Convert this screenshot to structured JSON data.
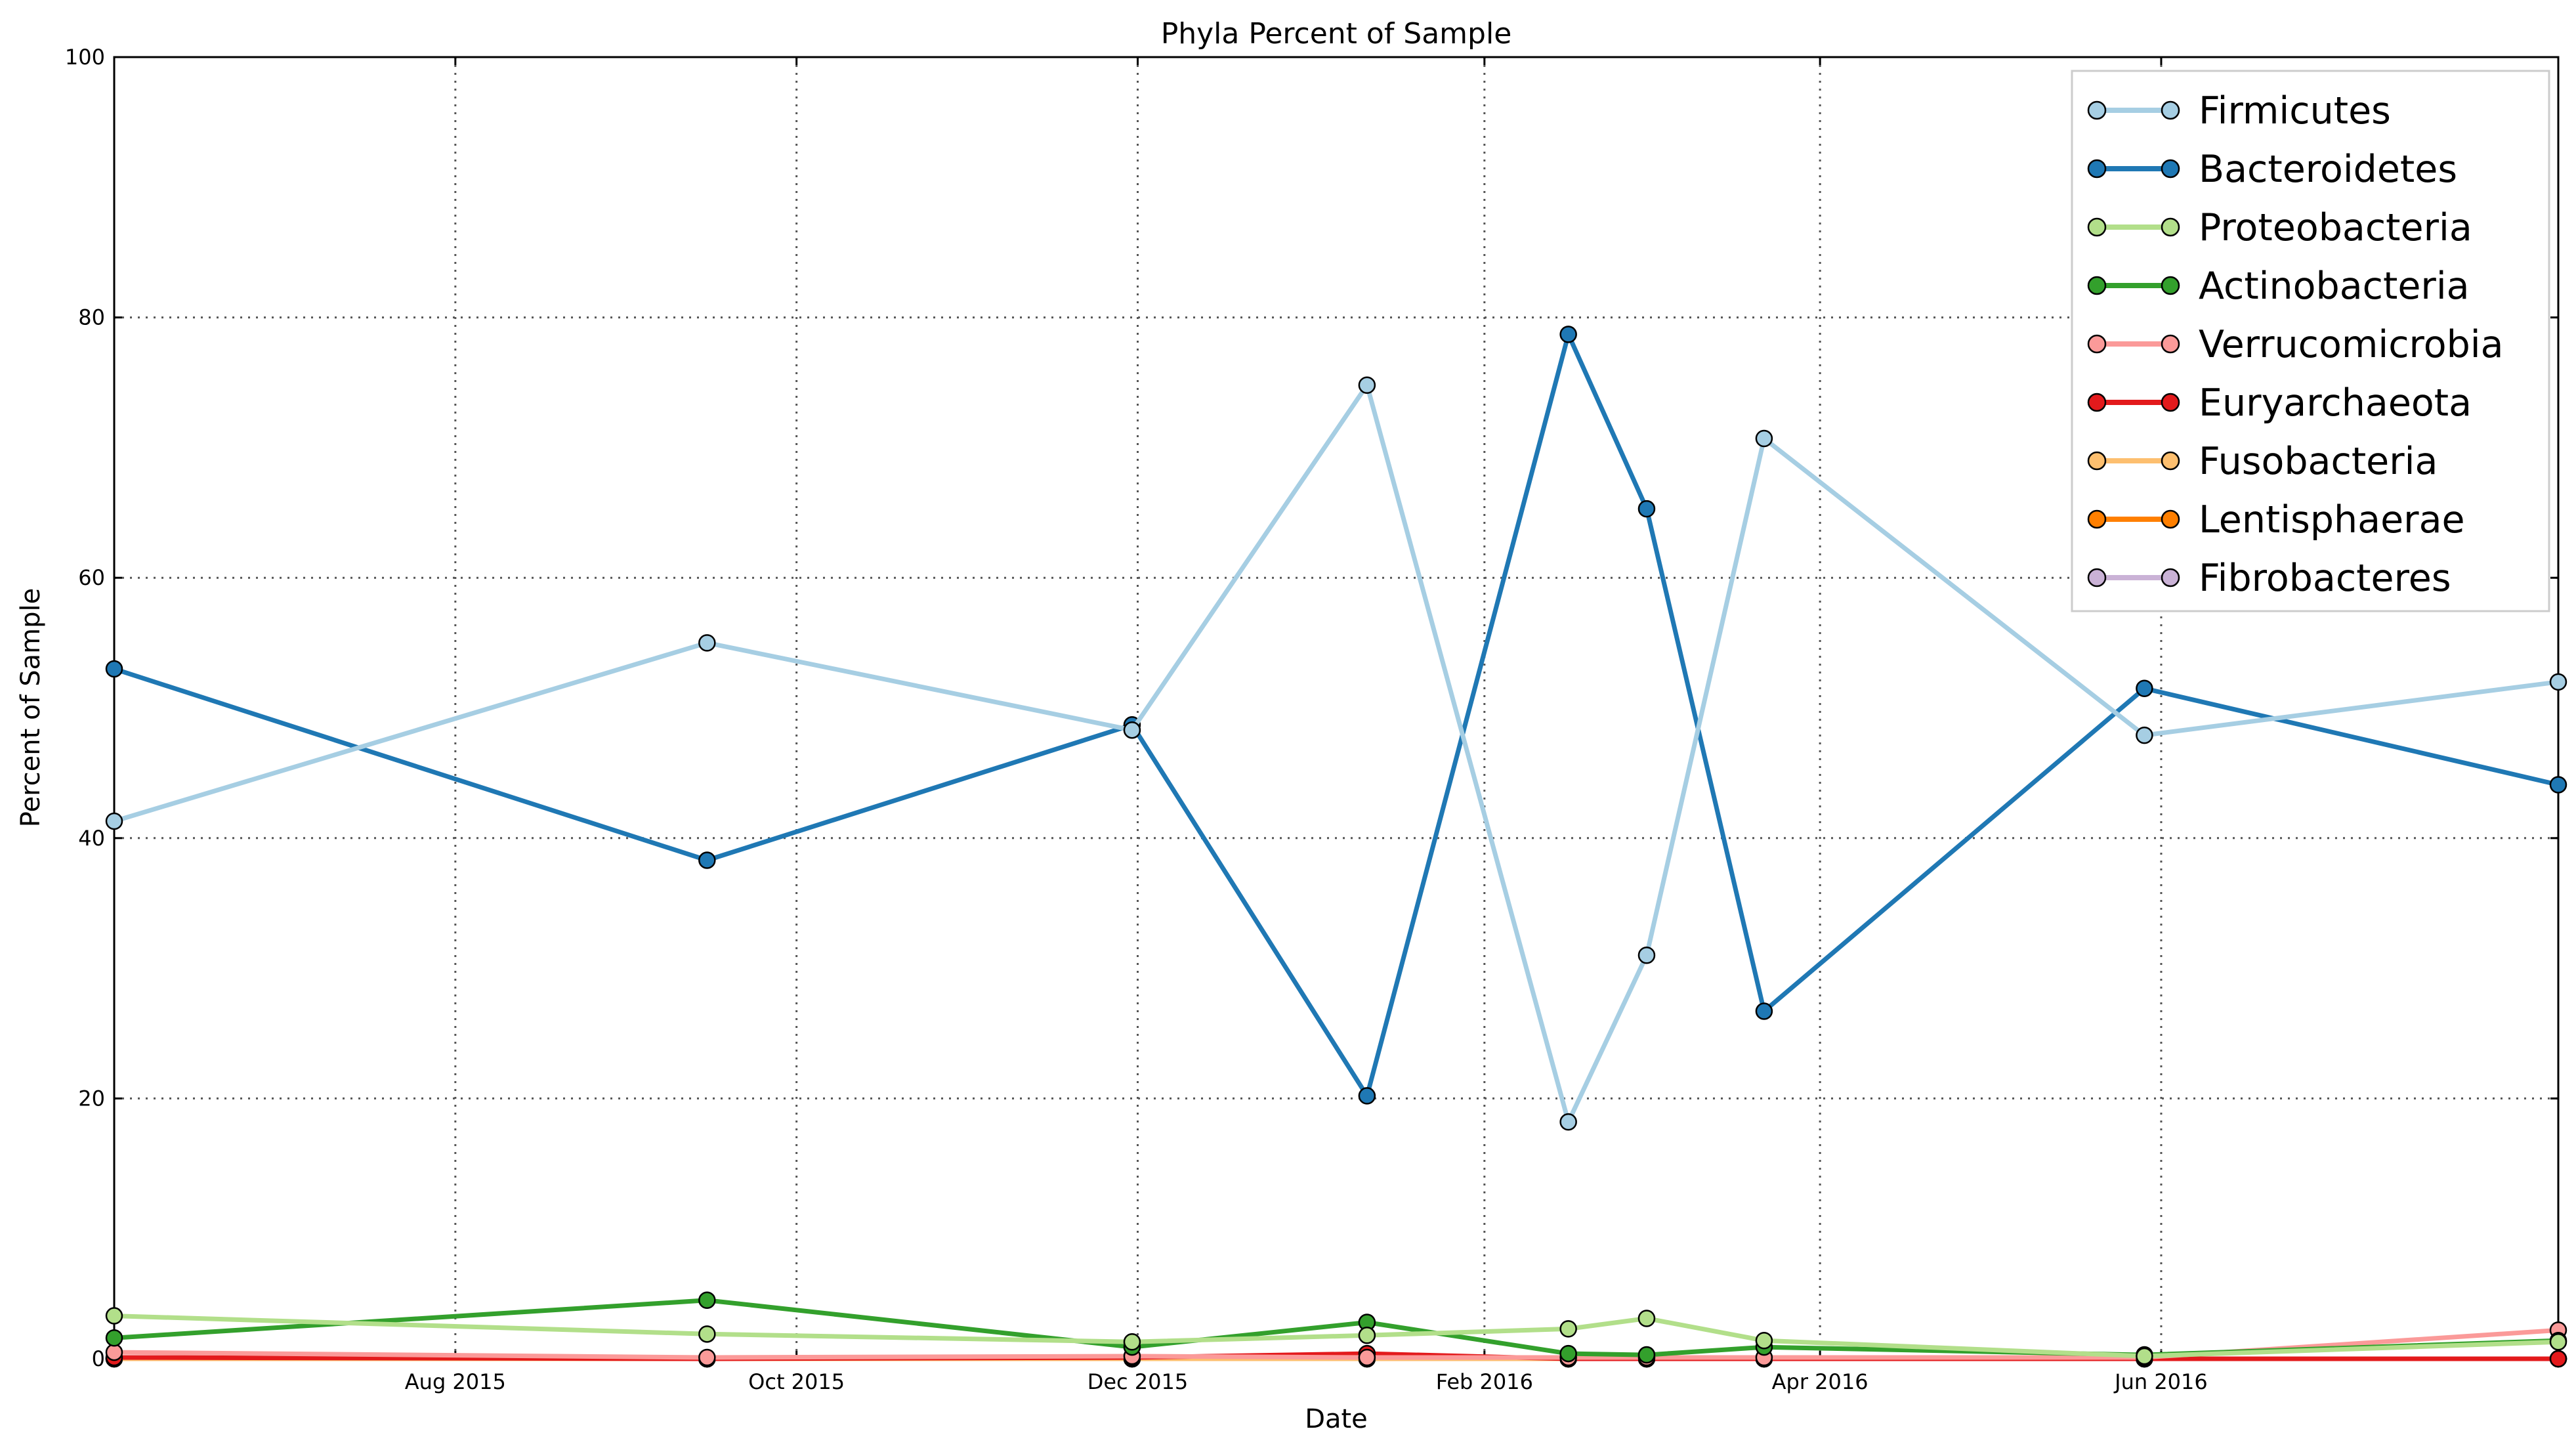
{
  "chart_data": {
    "type": "line",
    "title": "Phyla Percent of Sample",
    "xlabel": "Date",
    "ylabel": "Percent of Sample",
    "ylim": [
      0,
      100
    ],
    "xlim": [
      "2015-06-01",
      "2016-08-11"
    ],
    "yticks": [
      0,
      20,
      40,
      60,
      80,
      100
    ],
    "xticks": [
      {
        "date": "2015-08-01",
        "label": "Aug 2015"
      },
      {
        "date": "2015-10-01",
        "label": "Oct 2015"
      },
      {
        "date": "2015-12-01",
        "label": "Dec 2015"
      },
      {
        "date": "2016-02-01",
        "label": "Feb 2016"
      },
      {
        "date": "2016-04-01",
        "label": "Apr 2016"
      },
      {
        "date": "2016-06-01",
        "label": "Jun 2016"
      }
    ],
    "grid": true,
    "legend_position": "top-right",
    "x": [
      "2015-06-01",
      "2015-09-15",
      "2015-11-30",
      "2016-01-11",
      "2016-02-16",
      "2016-03-01",
      "2016-03-22",
      "2016-05-29",
      "2016-08-11"
    ],
    "series": [
      {
        "name": "Firmicutes",
        "color": "#a6cee3",
        "values": [
          41.3,
          55.0,
          48.3,
          74.8,
          18.2,
          31.0,
          70.7,
          47.9,
          52.0
        ]
      },
      {
        "name": "Bacteroidetes",
        "color": "#1f78b4",
        "values": [
          53.0,
          38.3,
          48.7,
          20.2,
          78.7,
          65.3,
          26.7,
          51.5,
          44.1
        ]
      },
      {
        "name": "Proteobacteria",
        "color": "#b2df8a",
        "values": [
          3.3,
          1.9,
          1.3,
          1.8,
          2.3,
          3.1,
          1.4,
          0.2,
          1.3
        ]
      },
      {
        "name": "Actinobacteria",
        "color": "#33a02c",
        "values": [
          1.6,
          4.5,
          0.9,
          2.8,
          0.4,
          0.3,
          0.9,
          0.3,
          1.4
        ]
      },
      {
        "name": "Verrucomicrobia",
        "color": "#fb9a99",
        "values": [
          0.5,
          0.1,
          0.2,
          0.1,
          0.1,
          0.1,
          0.1,
          0.1,
          2.2
        ]
      },
      {
        "name": "Euryarchaeota",
        "color": "#e31a1c",
        "values": [
          0.1,
          0.0,
          0.1,
          0.4,
          0.0,
          0.0,
          0.0,
          0.0,
          0.0
        ]
      },
      {
        "name": "Fusobacteria",
        "color": "#fdbf6f",
        "values": [
          0.0,
          0.0,
          0.0,
          0.0,
          0.0,
          0.0,
          0.0,
          0.0,
          0.0
        ]
      },
      {
        "name": "Lentisphaerae",
        "color": "#ff7f00",
        "values": [
          0.0,
          0.0,
          0.0,
          0.0,
          0.0,
          0.0,
          0.0,
          0.0,
          0.0
        ]
      },
      {
        "name": "Fibrobacteres",
        "color": "#cab2d6",
        "values": [
          0.0,
          0.0,
          0.0,
          0.0,
          0.0,
          0.0,
          0.0,
          0.0,
          0.0
        ]
      }
    ]
  }
}
